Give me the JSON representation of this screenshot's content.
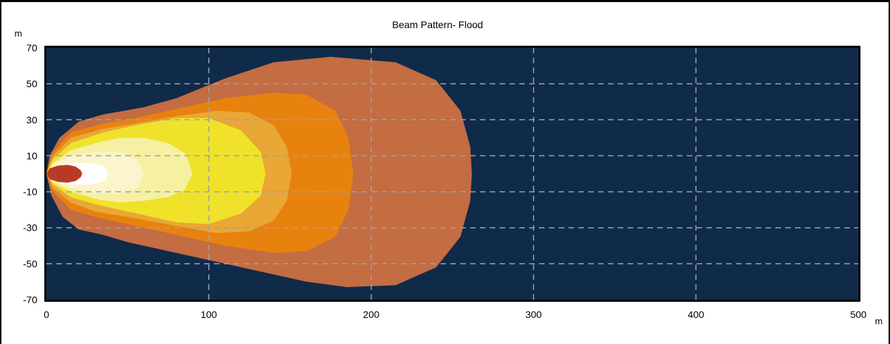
{
  "chart_data": {
    "type": "area",
    "title": "Beam Pattern- Flood",
    "xlabel": "m",
    "ylabel": "m",
    "xlim": [
      0,
      500
    ],
    "ylim": [
      -70,
      70
    ],
    "x_ticks": [
      0,
      100,
      200,
      300,
      400,
      500
    ],
    "y_ticks": [
      70,
      50,
      30,
      10,
      -10,
      -30,
      -50,
      -70
    ],
    "grid": true,
    "legend": "none",
    "colors": {
      "plot_background": "#102a4a",
      "grid": "#9aa3ad"
    },
    "series": [
      {
        "color": "#c46c42",
        "points": [
          [
            0,
            0
          ],
          [
            3,
            -12
          ],
          [
            10,
            -24
          ],
          [
            20,
            -31
          ],
          [
            35,
            -34
          ],
          [
            50,
            -38
          ],
          [
            80,
            -44
          ],
          [
            120,
            -52
          ],
          [
            160,
            -60
          ],
          [
            185,
            -63
          ],
          [
            215,
            -62
          ],
          [
            240,
            -52
          ],
          [
            255,
            -35
          ],
          [
            261,
            -15
          ],
          [
            262,
            0
          ],
          [
            261,
            15
          ],
          [
            255,
            35
          ],
          [
            240,
            52
          ],
          [
            215,
            62
          ],
          [
            175,
            65
          ],
          [
            140,
            62
          ],
          [
            110,
            53
          ],
          [
            80,
            42
          ],
          [
            60,
            37
          ],
          [
            48,
            35
          ],
          [
            35,
            33
          ],
          [
            20,
            29
          ],
          [
            8,
            20
          ],
          [
            2,
            10
          ]
        ]
      },
      {
        "color": "#e8820f",
        "points": [
          [
            0,
            0
          ],
          [
            4,
            -10
          ],
          [
            15,
            -20
          ],
          [
            30,
            -24
          ],
          [
            50,
            -28
          ],
          [
            80,
            -34
          ],
          [
            110,
            -40
          ],
          [
            140,
            -44
          ],
          [
            160,
            -43
          ],
          [
            178,
            -35
          ],
          [
            186,
            -20
          ],
          [
            189,
            0
          ],
          [
            186,
            20
          ],
          [
            178,
            35
          ],
          [
            160,
            44
          ],
          [
            140,
            45
          ],
          [
            110,
            42
          ],
          [
            80,
            36
          ],
          [
            55,
            31
          ],
          [
            35,
            28
          ],
          [
            15,
            23
          ],
          [
            4,
            12
          ]
        ]
      },
      {
        "color": "#e9a735",
        "points": [
          [
            0,
            0
          ],
          [
            4,
            -8
          ],
          [
            15,
            -16
          ],
          [
            30,
            -21
          ],
          [
            50,
            -24
          ],
          [
            80,
            -29
          ],
          [
            105,
            -33
          ],
          [
            125,
            -32
          ],
          [
            140,
            -26
          ],
          [
            148,
            -15
          ],
          [
            151,
            0
          ],
          [
            148,
            15
          ],
          [
            140,
            27
          ],
          [
            125,
            34
          ],
          [
            105,
            35
          ],
          [
            80,
            32
          ],
          [
            55,
            28
          ],
          [
            35,
            25
          ],
          [
            15,
            20
          ],
          [
            4,
            10
          ]
        ]
      },
      {
        "color": "#f0e22a",
        "points": [
          [
            0,
            0
          ],
          [
            4,
            -6
          ],
          [
            15,
            -13
          ],
          [
            30,
            -17
          ],
          [
            55,
            -22
          ],
          [
            80,
            -27
          ],
          [
            100,
            -28
          ],
          [
            120,
            -22
          ],
          [
            132,
            -12
          ],
          [
            135,
            0
          ],
          [
            132,
            12
          ],
          [
            120,
            24
          ],
          [
            100,
            31
          ],
          [
            80,
            31
          ],
          [
            55,
            27
          ],
          [
            35,
            23
          ],
          [
            15,
            17
          ],
          [
            4,
            8
          ]
        ]
      },
      {
        "color": "#f6f0a2",
        "points": [
          [
            0,
            0
          ],
          [
            4,
            -5
          ],
          [
            15,
            -10
          ],
          [
            30,
            -14
          ],
          [
            45,
            -16
          ],
          [
            60,
            -15
          ],
          [
            75,
            -13
          ],
          [
            85,
            -9
          ],
          [
            90,
            0
          ],
          [
            86,
            11
          ],
          [
            75,
            17
          ],
          [
            60,
            20
          ],
          [
            45,
            20
          ],
          [
            30,
            17
          ],
          [
            15,
            13
          ],
          [
            4,
            6
          ]
        ]
      },
      {
        "color": "#faf5cc",
        "points": [
          [
            0,
            0
          ],
          [
            4,
            -4
          ],
          [
            15,
            -8
          ],
          [
            30,
            -11
          ],
          [
            45,
            -11
          ],
          [
            56,
            -8
          ],
          [
            60,
            0
          ],
          [
            56,
            8
          ],
          [
            45,
            12
          ],
          [
            30,
            12
          ],
          [
            15,
            10
          ],
          [
            4,
            5
          ]
        ]
      },
      {
        "color": "#ffffff",
        "points": [
          [
            0,
            0
          ],
          [
            5,
            -4
          ],
          [
            15,
            -6
          ],
          [
            28,
            -6
          ],
          [
            36,
            -4
          ],
          [
            38,
            0
          ],
          [
            36,
            4
          ],
          [
            28,
            6
          ],
          [
            15,
            6
          ],
          [
            5,
            4
          ]
        ]
      },
      {
        "color": "#b93a24",
        "points": [
          [
            0,
            0
          ],
          [
            2,
            -3
          ],
          [
            7,
            -4.5
          ],
          [
            13,
            -5
          ],
          [
            18,
            -4
          ],
          [
            21,
            -2
          ],
          [
            22,
            0
          ],
          [
            21,
            2
          ],
          [
            18,
            4
          ],
          [
            13,
            5
          ],
          [
            7,
            4.5
          ],
          [
            2,
            3
          ]
        ]
      }
    ]
  }
}
